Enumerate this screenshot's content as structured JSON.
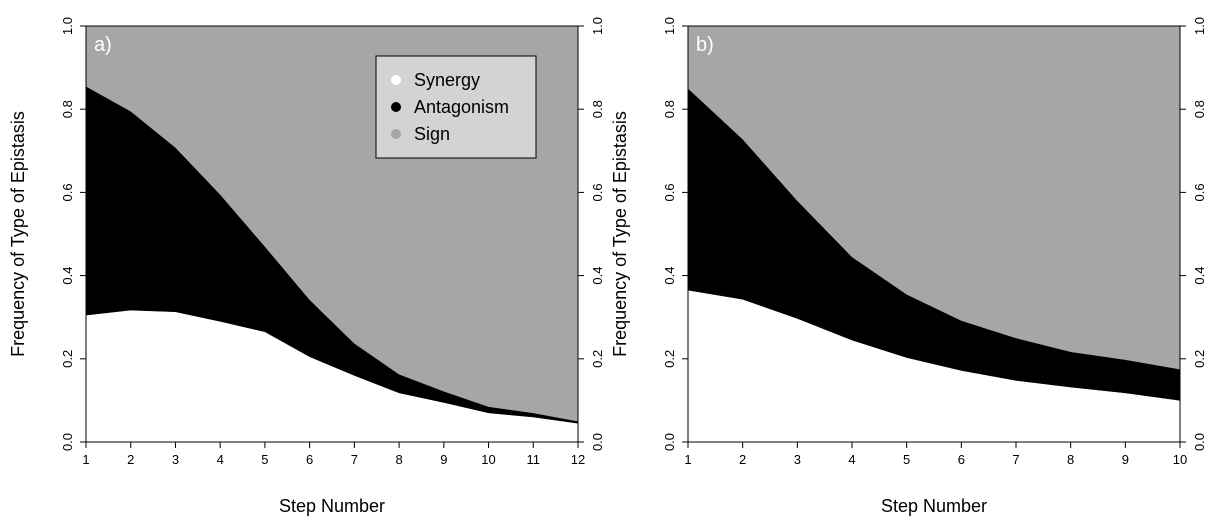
{
  "chart_data": [
    {
      "type": "area",
      "stacked": true,
      "panel_label": "a)",
      "xlabel": "Step Number",
      "ylabel": "Frequency of Type of Epistasis",
      "right_axis": true,
      "xlim": [
        1,
        12
      ],
      "ylim": [
        0,
        1
      ],
      "x": [
        1,
        2,
        3,
        4,
        5,
        6,
        7,
        8,
        9,
        10,
        11,
        12
      ],
      "xticks": [
        "1",
        "2",
        "3",
        "4",
        "5",
        "6",
        "7",
        "8",
        "9",
        "10",
        "11",
        "12"
      ],
      "yticks": [
        "0.0",
        "0.2",
        "0.4",
        "0.6",
        "0.8",
        "1.0"
      ],
      "series": [
        {
          "name": "Synergy",
          "color": "#ffffff",
          "values": [
            0.305,
            0.317,
            0.313,
            0.29,
            0.265,
            0.205,
            0.16,
            0.118,
            0.095,
            0.07,
            0.06,
            0.045
          ]
        },
        {
          "name": "Antagonism",
          "color": "#000000",
          "values": [
            0.55,
            0.478,
            0.395,
            0.305,
            0.205,
            0.137,
            0.077,
            0.045,
            0.027,
            0.015,
            0.01,
            0.005
          ]
        },
        {
          "name": "Sign",
          "color": "#a6a6a6",
          "values": [
            0.145,
            0.205,
            0.292,
            0.405,
            0.53,
            0.658,
            0.763,
            0.837,
            0.878,
            0.915,
            0.93,
            0.95
          ]
        }
      ],
      "legend": {
        "placement": "top-right",
        "entries": [
          {
            "label": "Synergy",
            "color": "#ffffff"
          },
          {
            "label": "Antagonism",
            "color": "#000000"
          },
          {
            "label": "Sign",
            "color": "#a6a6a6"
          }
        ]
      }
    },
    {
      "type": "area",
      "stacked": true,
      "panel_label": "b)",
      "xlabel": "Step Number",
      "ylabel": "Frequency of Type of Epistasis",
      "right_axis": true,
      "xlim": [
        1,
        10
      ],
      "ylim": [
        0,
        1
      ],
      "x": [
        1,
        2,
        3,
        4,
        5,
        6,
        7,
        8,
        9,
        10
      ],
      "xticks": [
        "1",
        "2",
        "3",
        "4",
        "5",
        "6",
        "7",
        "8",
        "9",
        "10"
      ],
      "yticks": [
        "0.0",
        "0.2",
        "0.4",
        "0.6",
        "0.8",
        "1.0"
      ],
      "series": [
        {
          "name": "Synergy",
          "color": "#ffffff",
          "values": [
            0.365,
            0.343,
            0.297,
            0.245,
            0.203,
            0.172,
            0.148,
            0.132,
            0.118,
            0.1
          ]
        },
        {
          "name": "Antagonism",
          "color": "#000000",
          "values": [
            0.485,
            0.385,
            0.283,
            0.2,
            0.152,
            0.12,
            0.102,
            0.085,
            0.08,
            0.075
          ]
        },
        {
          "name": "Sign",
          "color": "#a6a6a6",
          "values": [
            0.15,
            0.272,
            0.42,
            0.555,
            0.645,
            0.708,
            0.75,
            0.783,
            0.802,
            0.825
          ]
        }
      ]
    }
  ]
}
